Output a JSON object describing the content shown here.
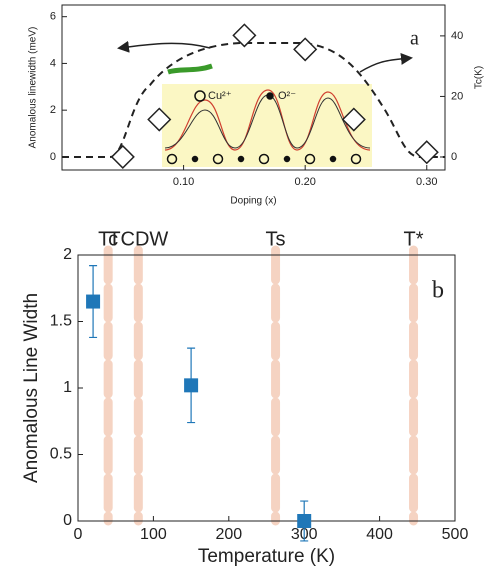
{
  "chart_data": [
    {
      "type": "scatter",
      "panel_label": "a",
      "x_label": "Doping (x)",
      "y_label": "Anomalous linewidth (meV)",
      "y2_label": "Tc(K)",
      "x": [
        0.05,
        0.08,
        0.15,
        0.2,
        0.24,
        0.3
      ],
      "values": [
        0,
        1.6,
        5.2,
        4.6,
        1.6,
        0.2
      ],
      "marker": "diamond",
      "color": "#ffffff",
      "xlim": [
        0,
        0.315
      ],
      "xticks": [
        {
          "value": 0.1,
          "label": "0.10"
        },
        {
          "value": 0.2,
          "label": "0.20"
        },
        {
          "value": 0.3,
          "label": "0.30"
        }
      ],
      "ylim": [
        -0.56,
        6.5
      ],
      "yticks": [
        0,
        2,
        4,
        6
      ],
      "y2lim": [
        -4.3,
        50.2
      ],
      "y2ticks": [
        0,
        20,
        40
      ],
      "inset_labels": [
        "Cu²⁺",
        "O²⁻"
      ]
    },
    {
      "type": "scatter",
      "panel_label": "b",
      "x_label": "Temperature (K)",
      "y_label": "Anomalous Line Width",
      "x": [
        20,
        150,
        300
      ],
      "values": [
        1.65,
        1.02,
        0.0
      ],
      "errors": [
        0.27,
        0.28,
        0.15
      ],
      "marker": "square",
      "color": "#1f77b8",
      "xlim": [
        0,
        500
      ],
      "xticks": [
        0,
        100,
        200,
        300,
        400,
        500
      ],
      "ylim": [
        0,
        2
      ],
      "yticks": [
        0,
        0.5,
        1,
        1.5,
        2
      ],
      "annotations": [
        {
          "text": "Tc",
          "x": 40
        },
        {
          "text": "TCDW",
          "x": 80
        },
        {
          "text": "Ts",
          "x": 262
        },
        {
          "text": "T*",
          "x": 445
        }
      ]
    }
  ]
}
